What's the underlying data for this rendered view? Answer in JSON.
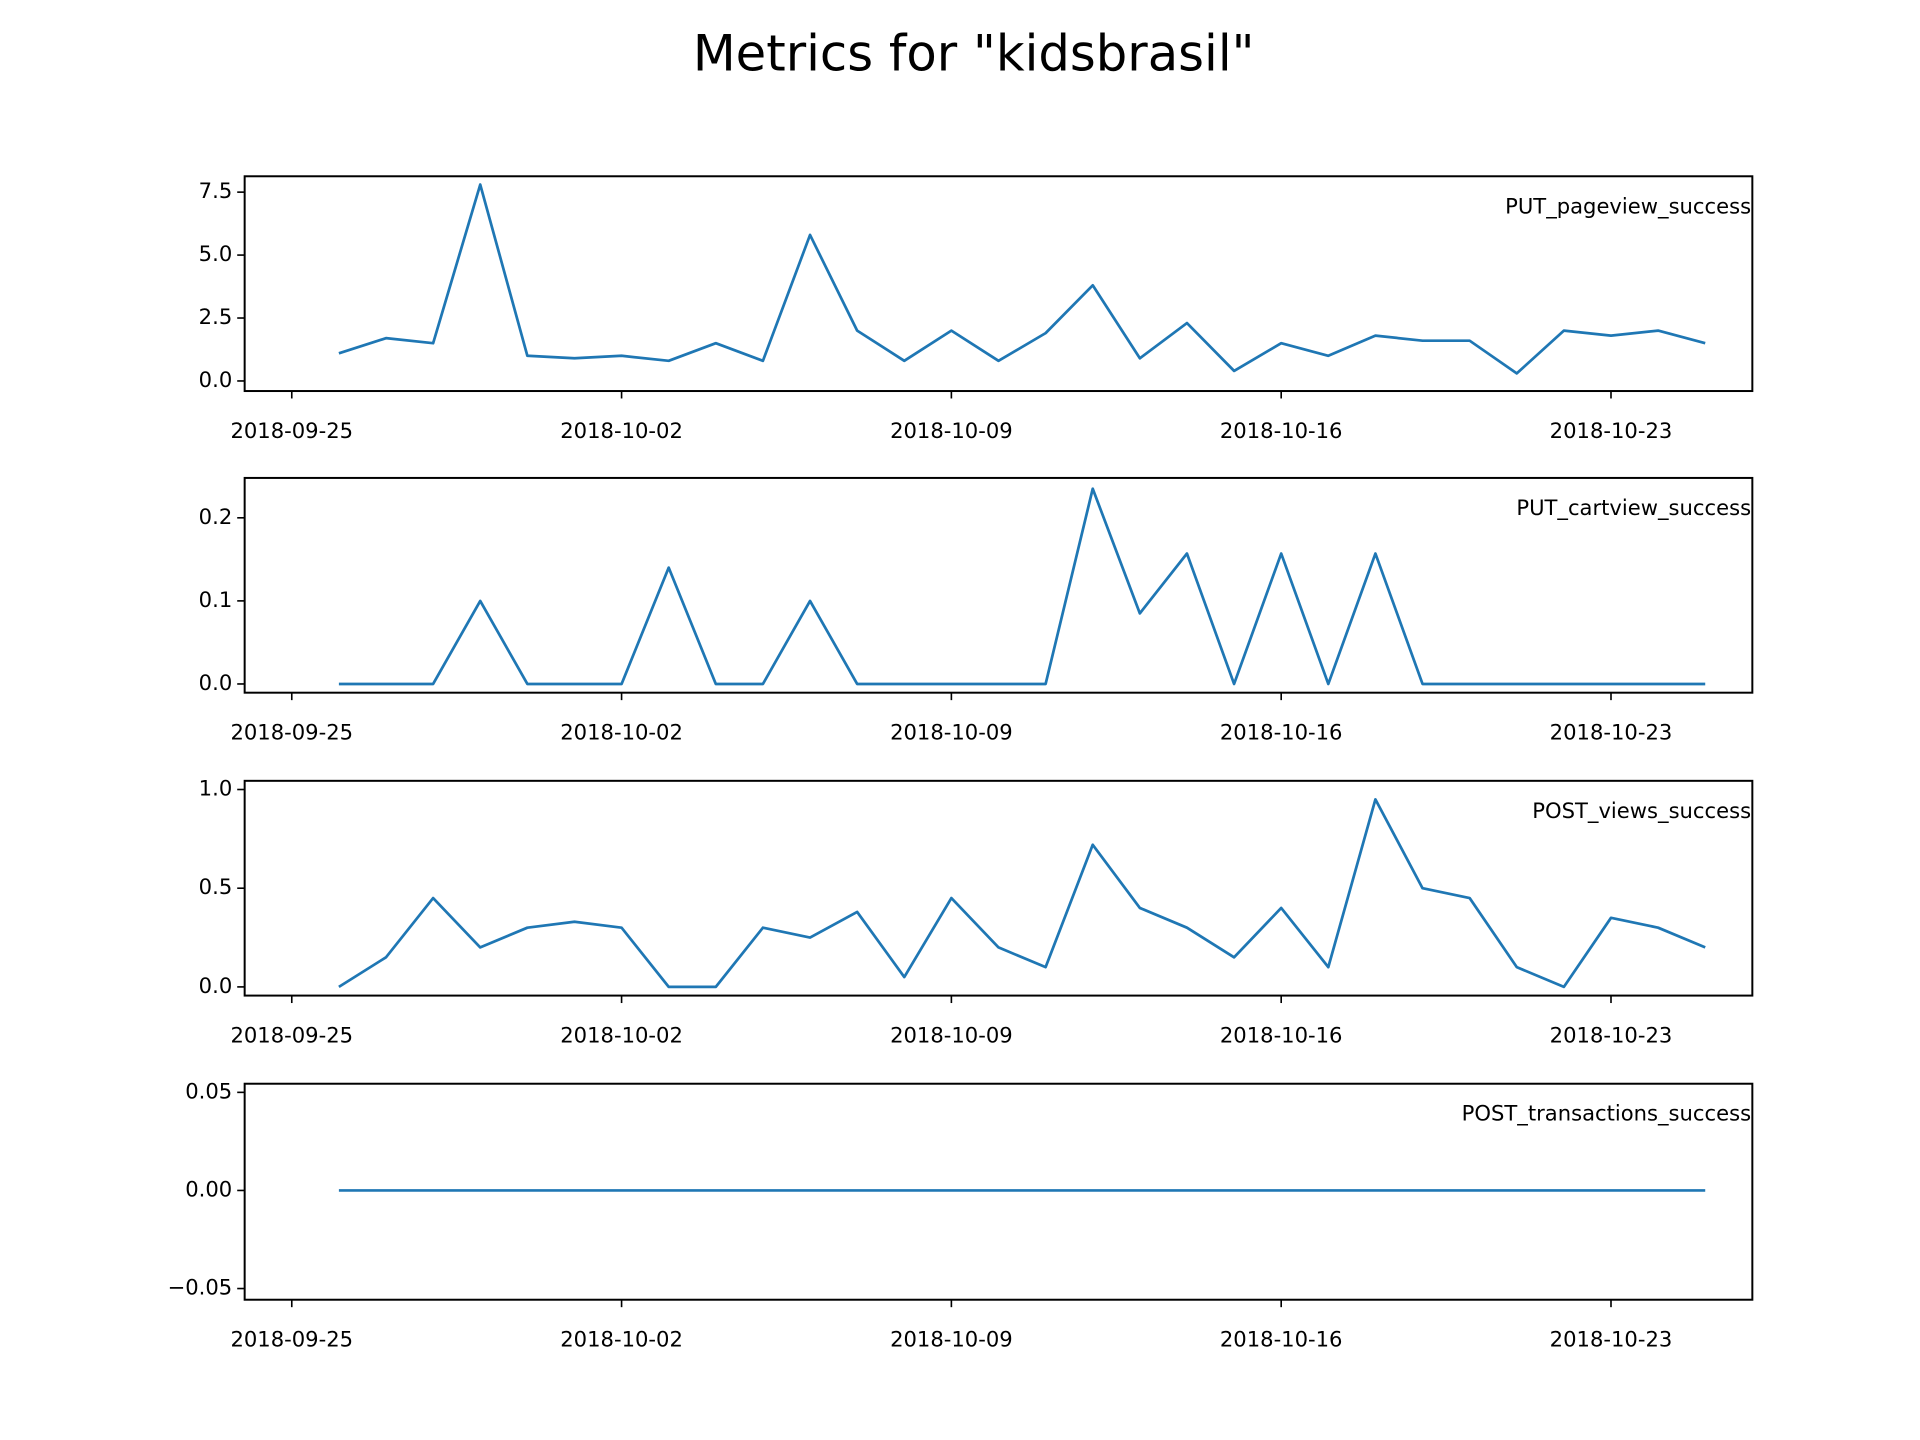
{
  "title": "Metrics for \"kidsbrasil\"",
  "chart_data": [
    {
      "type": "line",
      "x": [
        "2018-09-26",
        "2018-09-27",
        "2018-09-28",
        "2018-09-29",
        "2018-09-30",
        "2018-10-01",
        "2018-10-02",
        "2018-10-03",
        "2018-10-04",
        "2018-10-05",
        "2018-10-06",
        "2018-10-07",
        "2018-10-08",
        "2018-10-09",
        "2018-10-10",
        "2018-10-11",
        "2018-10-12",
        "2018-10-13",
        "2018-10-14",
        "2018-10-15",
        "2018-10-16",
        "2018-10-17",
        "2018-10-18",
        "2018-10-19",
        "2018-10-20",
        "2018-10-21",
        "2018-10-22",
        "2018-10-23",
        "2018-10-24",
        "2018-10-25"
      ],
      "series": [
        {
          "name": "PUT_pageview_success",
          "color": "#1f77b4",
          "values": [
            1.1,
            1.7,
            1.5,
            7.8,
            1.0,
            0.9,
            1.0,
            0.8,
            1.5,
            0.8,
            5.8,
            2.0,
            0.8,
            2.0,
            0.8,
            1.9,
            3.8,
            0.9,
            2.3,
            0.4,
            1.5,
            1.0,
            1.8,
            1.6,
            1.6,
            0.3,
            2.0,
            1.8,
            2.0,
            1.5
          ]
        }
      ],
      "xlim": [
        "2018-09-24",
        "2018-10-26"
      ],
      "xticks": [
        "2018-09-25",
        "2018-10-02",
        "2018-10-09",
        "2018-10-16",
        "2018-10-23"
      ],
      "ylim": [
        -0.4,
        8.13
      ],
      "yticks": [
        {
          "value": 0,
          "label": "0.0"
        },
        2.5,
        {
          "value": 5,
          "label": "5.0"
        },
        7.5
      ]
    },
    {
      "type": "line",
      "x": [
        "2018-09-26",
        "2018-09-27",
        "2018-09-28",
        "2018-09-29",
        "2018-09-30",
        "2018-10-01",
        "2018-10-02",
        "2018-10-03",
        "2018-10-04",
        "2018-10-05",
        "2018-10-06",
        "2018-10-07",
        "2018-10-08",
        "2018-10-09",
        "2018-10-10",
        "2018-10-11",
        "2018-10-12",
        "2018-10-13",
        "2018-10-14",
        "2018-10-15",
        "2018-10-16",
        "2018-10-17",
        "2018-10-18",
        "2018-10-19",
        "2018-10-20",
        "2018-10-21",
        "2018-10-22",
        "2018-10-23",
        "2018-10-24",
        "2018-10-25"
      ],
      "series": [
        {
          "name": "PUT_cartview_success",
          "color": "#1f77b4",
          "values": [
            0,
            0,
            0,
            0.1,
            0,
            0,
            0,
            0.14,
            0,
            0,
            0.1,
            0,
            0,
            0,
            0,
            0,
            0.235,
            0.085,
            0.157,
            0,
            0.157,
            0,
            0.157,
            0,
            0,
            0,
            0,
            0,
            0,
            0
          ]
        }
      ],
      "xlim": [
        "2018-09-24",
        "2018-10-26"
      ],
      "xticks": [
        "2018-09-25",
        "2018-10-02",
        "2018-10-09",
        "2018-10-16",
        "2018-10-23"
      ],
      "ylim": [
        -0.0105,
        0.248
      ],
      "yticks": [
        {
          "value": 0,
          "label": "0.0"
        },
        0.1,
        0.2
      ]
    },
    {
      "type": "line",
      "x": [
        "2018-09-26",
        "2018-09-27",
        "2018-09-28",
        "2018-09-29",
        "2018-09-30",
        "2018-10-01",
        "2018-10-02",
        "2018-10-03",
        "2018-10-04",
        "2018-10-05",
        "2018-10-06",
        "2018-10-07",
        "2018-10-08",
        "2018-10-09",
        "2018-10-10",
        "2018-10-11",
        "2018-10-12",
        "2018-10-13",
        "2018-10-14",
        "2018-10-15",
        "2018-10-16",
        "2018-10-17",
        "2018-10-18",
        "2018-10-19",
        "2018-10-20",
        "2018-10-21",
        "2018-10-22",
        "2018-10-23",
        "2018-10-24",
        "2018-10-25"
      ],
      "series": [
        {
          "name": "POST_views_success",
          "color": "#1f77b4",
          "values": [
            0,
            0.15,
            0.45,
            0.2,
            0.3,
            0.33,
            0.3,
            0,
            0,
            0.3,
            0.25,
            0.38,
            0.05,
            0.45,
            0.2,
            0.1,
            0.72,
            0.4,
            0.3,
            0.15,
            0.4,
            0.1,
            0.95,
            0.5,
            0.45,
            0.1,
            0,
            0.35,
            0.3,
            0.2
          ]
        }
      ],
      "xlim": [
        "2018-09-24",
        "2018-10-26"
      ],
      "xticks": [
        "2018-09-25",
        "2018-10-02",
        "2018-10-09",
        "2018-10-16",
        "2018-10-23"
      ],
      "ylim": [
        -0.044,
        1.044
      ],
      "yticks": [
        {
          "value": 0,
          "label": "0.0"
        },
        0.5,
        {
          "value": 1,
          "label": "1.0"
        }
      ]
    },
    {
      "type": "line",
      "x": [
        "2018-09-26",
        "2018-09-27",
        "2018-09-28",
        "2018-09-29",
        "2018-09-30",
        "2018-10-01",
        "2018-10-02",
        "2018-10-03",
        "2018-10-04",
        "2018-10-05",
        "2018-10-06",
        "2018-10-07",
        "2018-10-08",
        "2018-10-09",
        "2018-10-10",
        "2018-10-11",
        "2018-10-12",
        "2018-10-13",
        "2018-10-14",
        "2018-10-15",
        "2018-10-16",
        "2018-10-17",
        "2018-10-18",
        "2018-10-19",
        "2018-10-20",
        "2018-10-21",
        "2018-10-22",
        "2018-10-23",
        "2018-10-24",
        "2018-10-25"
      ],
      "series": [
        {
          "name": "POST_transactions_success",
          "color": "#1f77b4",
          "values": [
            0,
            0,
            0,
            0,
            0,
            0,
            0,
            0,
            0,
            0,
            0,
            0,
            0,
            0,
            0,
            0,
            0,
            0,
            0,
            0,
            0,
            0,
            0,
            0,
            0,
            0,
            0,
            0,
            0,
            0
          ]
        }
      ],
      "xlim": [
        "2018-09-24",
        "2018-10-26"
      ],
      "xticks": [
        "2018-09-25",
        "2018-10-02",
        "2018-10-09",
        "2018-10-16",
        "2018-10-23"
      ],
      "ylim": [
        -0.0557,
        0.0544
      ],
      "yticks": [
        {
          "value": -0.05,
          "label": "−0.05"
        },
        {
          "value": 0,
          "label": "0.00"
        },
        0.05
      ]
    }
  ]
}
